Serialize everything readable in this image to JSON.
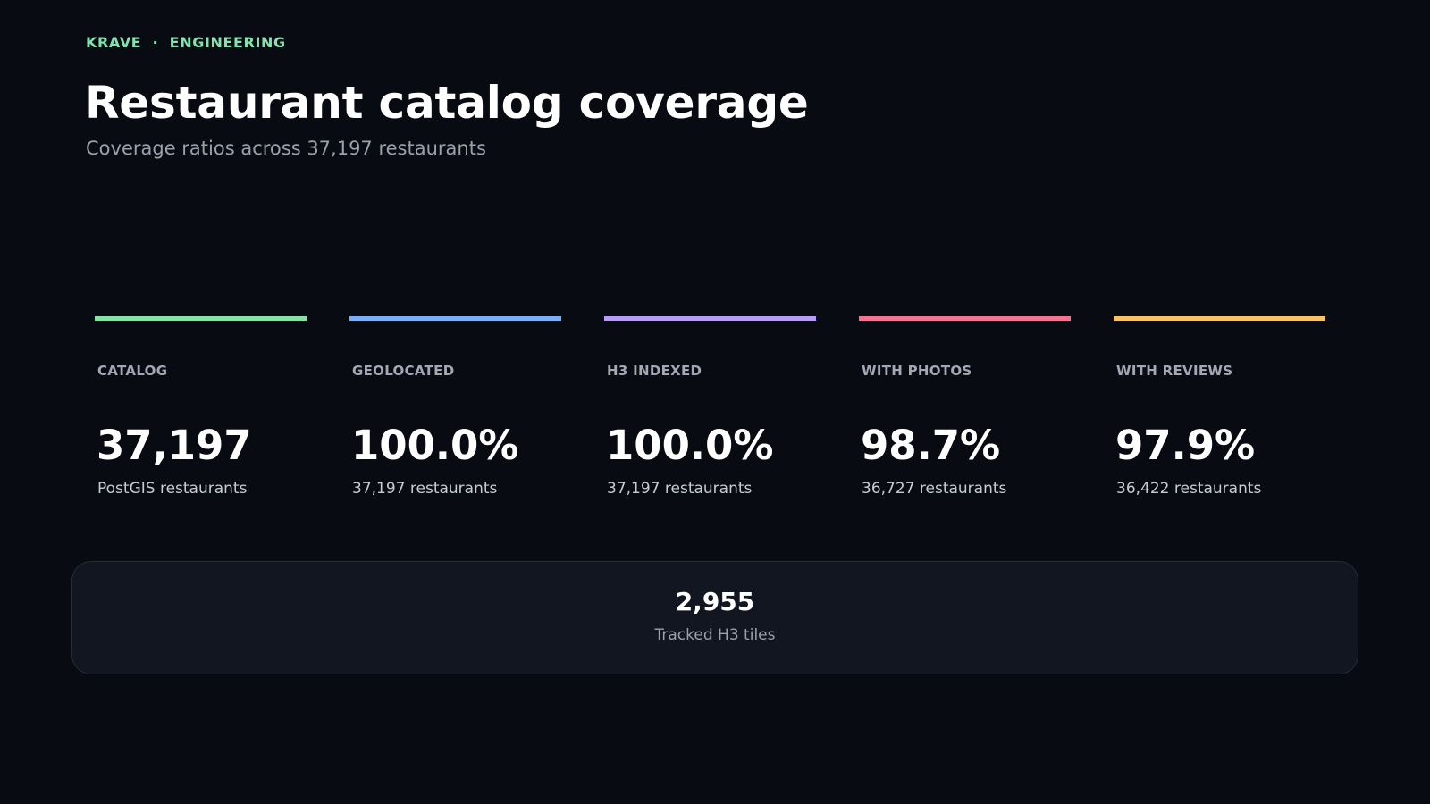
{
  "header": {
    "eyebrow": "KRAVE  ·  ENGINEERING",
    "title": "Restaurant catalog coverage",
    "subtitle": "Coverage ratios across 37,197 restaurants"
  },
  "cards": [
    {
      "label": "CATALOG",
      "value": "37,197",
      "caption": "PostGIS restaurants",
      "color": "#86e1a8"
    },
    {
      "label": "GEOLOCATED",
      "value": "100.0%",
      "caption": "37,197 restaurants",
      "color": "#7aaef7"
    },
    {
      "label": "H3 INDEXED",
      "value": "100.0%",
      "caption": "37,197 restaurants",
      "color": "#b79cf7"
    },
    {
      "label": "WITH PHOTOS",
      "value": "98.7%",
      "caption": "36,727 restaurants",
      "color": "#f47390"
    },
    {
      "label": "WITH REVIEWS",
      "value": "97.9%",
      "caption": "36,422 restaurants",
      "color": "#f6c465"
    }
  ],
  "summary": {
    "value": "2,955",
    "label": "Tracked H3 tiles"
  }
}
